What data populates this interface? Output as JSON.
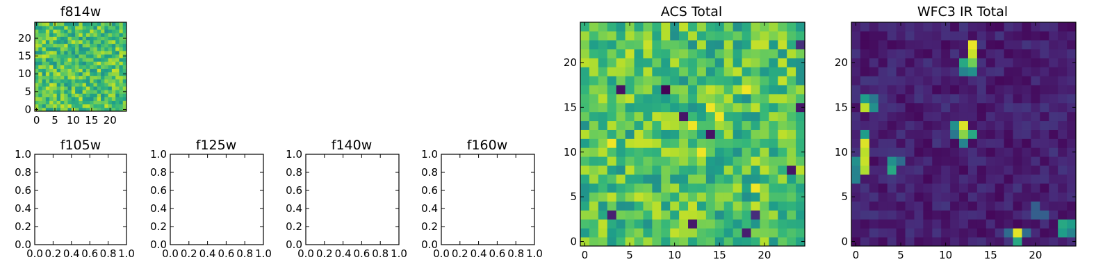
{
  "chart_data": [
    {
      "type": "heatmap",
      "title": "f814w",
      "grid": false,
      "colormap": "viridis",
      "xlim": [
        -0.5,
        24.5
      ],
      "ylim": [
        -0.5,
        24.5
      ],
      "xticks": [
        0,
        5,
        10,
        15,
        20
      ],
      "yticks": [
        0,
        5,
        10,
        15,
        20
      ],
      "grid_size": 25,
      "style": "noise-high",
      "seed": 11
    },
    {
      "type": "heatmap",
      "title": "f105w",
      "grid": false,
      "xlim": [
        0,
        1
      ],
      "ylim": [
        0,
        1
      ],
      "xticks": [
        "0.0",
        "0.2",
        "0.4",
        "0.6",
        "0.8",
        "1.0"
      ],
      "yticks": [
        "0.0",
        "0.2",
        "0.4",
        "0.6",
        "0.8",
        "1.0"
      ]
    },
    {
      "type": "heatmap",
      "title": "f125w",
      "grid": false,
      "xlim": [
        0,
        1
      ],
      "ylim": [
        0,
        1
      ],
      "xticks": [
        "0.0",
        "0.2",
        "0.4",
        "0.6",
        "0.8",
        "1.0"
      ],
      "yticks": [
        "0.0",
        "0.2",
        "0.4",
        "0.6",
        "0.8",
        "1.0"
      ]
    },
    {
      "type": "heatmap",
      "title": "f140w",
      "grid": false,
      "xlim": [
        0,
        1
      ],
      "ylim": [
        0,
        1
      ],
      "xticks": [
        "0.0",
        "0.2",
        "0.4",
        "0.6",
        "0.8",
        "1.0"
      ],
      "yticks": [
        "0.0",
        "0.2",
        "0.4",
        "0.6",
        "0.8",
        "1.0"
      ]
    },
    {
      "type": "heatmap",
      "title": "f160w",
      "grid": false,
      "xlim": [
        0,
        1
      ],
      "ylim": [
        0,
        1
      ],
      "xticks": [
        "0.0",
        "0.2",
        "0.4",
        "0.6",
        "0.8",
        "1.0"
      ],
      "yticks": [
        "0.0",
        "0.2",
        "0.4",
        "0.6",
        "0.8",
        "1.0"
      ]
    },
    {
      "type": "heatmap",
      "title": "ACS Total",
      "grid": false,
      "colormap": "viridis",
      "xlim": [
        -0.5,
        24.5
      ],
      "ylim": [
        -0.5,
        24.5
      ],
      "xticks": [
        0,
        5,
        10,
        15,
        20
      ],
      "yticks": [
        0,
        5,
        10,
        15,
        20
      ],
      "grid_size": 25,
      "style": "noise-high",
      "seed": 7,
      "dark_pixels": [
        [
          9,
          17
        ],
        [
          18,
          1
        ],
        [
          19,
          3
        ],
        [
          24,
          22
        ],
        [
          14,
          12
        ],
        [
          11,
          14
        ],
        [
          24,
          15
        ],
        [
          23,
          8
        ],
        [
          3,
          3
        ],
        [
          12,
          2
        ],
        [
          4,
          17
        ]
      ],
      "bright_pixels": [
        [
          12,
          13
        ],
        [
          13,
          10
        ],
        [
          14,
          15
        ],
        [
          15,
          14
        ],
        [
          18,
          17
        ],
        [
          3,
          11
        ],
        [
          19,
          6
        ]
      ]
    },
    {
      "type": "heatmap",
      "title": "WFC3 IR Total",
      "grid": false,
      "colormap": "viridis",
      "xlim": [
        -0.5,
        24.5
      ],
      "ylim": [
        -0.5,
        24.5
      ],
      "xticks": [
        0,
        5,
        10,
        15,
        20
      ],
      "yticks": [
        0,
        5,
        10,
        15,
        20
      ],
      "grid_size": 25,
      "style": "noise-low",
      "seed": 3,
      "bright_pixels": [
        [
          13,
          22,
          0.97
        ],
        [
          13,
          21,
          0.92
        ],
        [
          12,
          20,
          0.6
        ],
        [
          13,
          20,
          0.78
        ],
        [
          12,
          19,
          0.45
        ],
        [
          13,
          19,
          0.5
        ],
        [
          1,
          16,
          0.55
        ],
        [
          1,
          15,
          0.9
        ],
        [
          2,
          15,
          0.5
        ],
        [
          2,
          16,
          0.4
        ],
        [
          11,
          13,
          0.5
        ],
        [
          12,
          13,
          0.95
        ],
        [
          12,
          12,
          0.82
        ],
        [
          13,
          12,
          0.6
        ],
        [
          12,
          11,
          0.45
        ],
        [
          11,
          12,
          0.4
        ],
        [
          1,
          12,
          0.55
        ],
        [
          1,
          11,
          0.95
        ],
        [
          1,
          10,
          0.9
        ],
        [
          1,
          9,
          0.92
        ],
        [
          1,
          8,
          0.88
        ],
        [
          0,
          9,
          0.5
        ],
        [
          0,
          8,
          0.45
        ],
        [
          0,
          7,
          0.45
        ],
        [
          4,
          9,
          0.5
        ],
        [
          4,
          8,
          0.6
        ],
        [
          5,
          9,
          0.35
        ],
        [
          18,
          1,
          0.96
        ],
        [
          18,
          0,
          0.6
        ],
        [
          17,
          1,
          0.35
        ],
        [
          19,
          1,
          0.35
        ],
        [
          23,
          2,
          0.6
        ],
        [
          24,
          2,
          0.55
        ],
        [
          23,
          1,
          0.55
        ],
        [
          24,
          1,
          0.45
        ],
        [
          20,
          4,
          0.3
        ],
        [
          20,
          3,
          0.3
        ],
        [
          21,
          3,
          0.3
        ]
      ]
    }
  ]
}
